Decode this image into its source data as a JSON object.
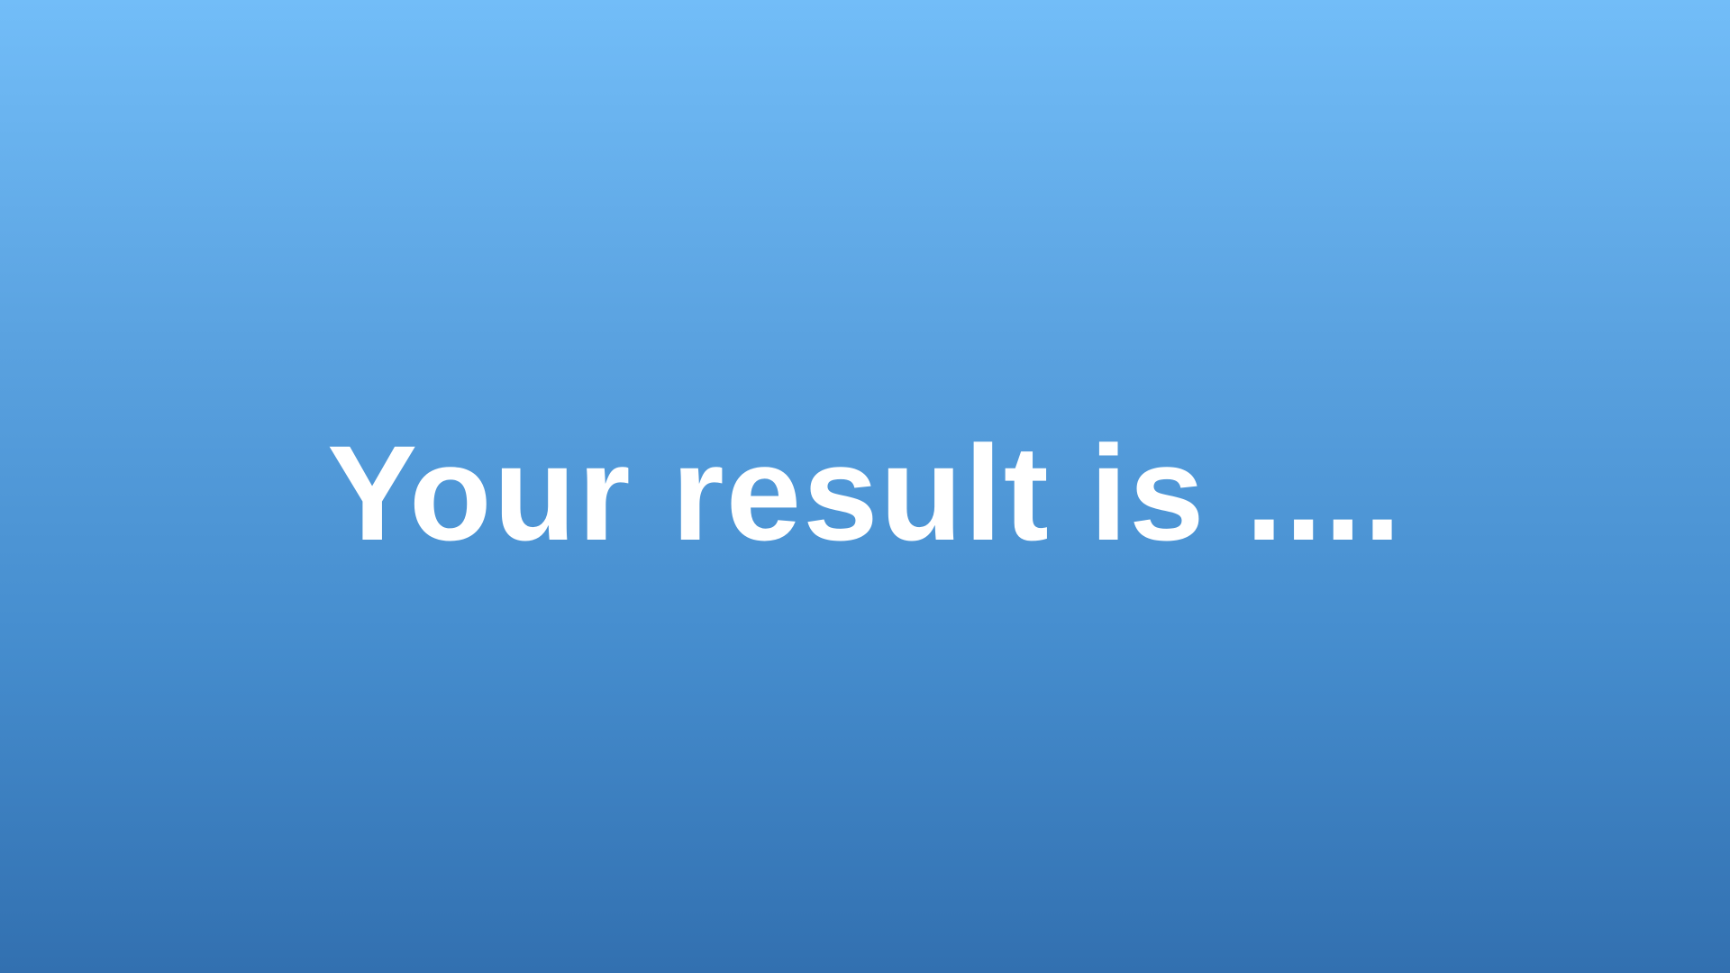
{
  "screen": {
    "message": "Your result is ...."
  },
  "colors": {
    "background_top": "#72bdf8",
    "background_bottom": "#3270b0",
    "text": "#ffffff"
  }
}
